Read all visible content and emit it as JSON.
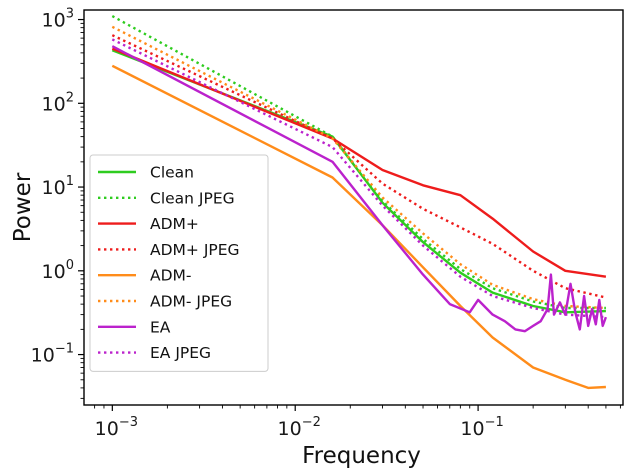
{
  "chart_data": {
    "type": "line",
    "title": "",
    "xlabel": "Frequency",
    "ylabel": "Power",
    "xscale": "log",
    "yscale": "log",
    "xlim": [
      0.0007,
      0.62
    ],
    "ylim": [
      0.025,
      1300
    ],
    "xticks": [
      {
        "value": 0.001,
        "base": "10",
        "exp": "−3"
      },
      {
        "value": 0.01,
        "base": "10",
        "exp": "−2"
      },
      {
        "value": 0.1,
        "base": "10",
        "exp": "−1"
      }
    ],
    "yticks": [
      {
        "value": 0.1,
        "base": "10",
        "exp": "−1"
      },
      {
        "value": 1,
        "base": "10",
        "exp": "0"
      },
      {
        "value": 10,
        "base": "10",
        "exp": "1"
      },
      {
        "value": 100,
        "base": "10",
        "exp": "2"
      },
      {
        "value": 1000,
        "base": "10",
        "exp": "3"
      }
    ],
    "grid": false,
    "legend_position": "lower-left",
    "series": [
      {
        "name": "Clean",
        "color": "#2ecc1f",
        "style": "solid",
        "x": [
          0.001,
          0.016,
          0.03,
          0.05,
          0.08,
          0.12,
          0.2,
          0.3,
          0.5
        ],
        "y": [
          430,
          40,
          6.5,
          2.2,
          0.95,
          0.55,
          0.38,
          0.32,
          0.33
        ]
      },
      {
        "name": "Clean JPEG",
        "color": "#2ecc1f",
        "style": "dotted",
        "x": [
          0.001,
          0.016,
          0.03,
          0.05,
          0.08,
          0.12,
          0.2,
          0.3,
          0.5
        ],
        "y": [
          1100,
          40,
          6.8,
          2.4,
          1.05,
          0.62,
          0.43,
          0.36,
          0.36
        ]
      },
      {
        "name": "ADM+",
        "color": "#ee1c1c",
        "style": "solid",
        "x": [
          0.001,
          0.016,
          0.03,
          0.05,
          0.08,
          0.12,
          0.2,
          0.3,
          0.5
        ],
        "y": [
          450,
          38,
          16,
          10.5,
          8,
          4.2,
          1.7,
          1.0,
          0.85
        ]
      },
      {
        "name": "ADM+ JPEG",
        "color": "#ee1c1c",
        "style": "dotted",
        "x": [
          0.001,
          0.016,
          0.03,
          0.05,
          0.08,
          0.12,
          0.2,
          0.3,
          0.5
        ],
        "y": [
          650,
          38,
          11,
          5.5,
          3.3,
          2.1,
          1.0,
          0.62,
          0.48
        ]
      },
      {
        "name": "ADM-",
        "color": "#ff8c1a",
        "style": "solid",
        "x": [
          0.001,
          0.016,
          0.03,
          0.05,
          0.08,
          0.12,
          0.2,
          0.3,
          0.4,
          0.5
        ],
        "y": [
          280,
          13,
          3.5,
          1.1,
          0.38,
          0.16,
          0.07,
          0.05,
          0.04,
          0.041
        ]
      },
      {
        "name": "ADM- JPEG",
        "color": "#ff8c1a",
        "style": "dotted",
        "x": [
          0.001,
          0.016,
          0.03,
          0.05,
          0.08,
          0.12,
          0.2,
          0.3,
          0.5
        ],
        "y": [
          820,
          38,
          7.5,
          2.8,
          1.2,
          0.68,
          0.46,
          0.38,
          0.36
        ]
      },
      {
        "name": "EA",
        "color": "#bb22cc",
        "style": "solid",
        "x": [
          0.001,
          0.016,
          0.03,
          0.05,
          0.07,
          0.09,
          0.1,
          0.12,
          0.14,
          0.16,
          0.18,
          0.2,
          0.22,
          0.24,
          0.25,
          0.26,
          0.28,
          0.3,
          0.32,
          0.34,
          0.36,
          0.38,
          0.4,
          0.42,
          0.44,
          0.46,
          0.48,
          0.5
        ],
        "y": [
          480,
          20,
          3.5,
          0.9,
          0.4,
          0.32,
          0.45,
          0.3,
          0.25,
          0.2,
          0.19,
          0.22,
          0.25,
          0.35,
          0.9,
          0.3,
          0.42,
          0.3,
          0.7,
          0.32,
          0.2,
          0.5,
          0.22,
          0.35,
          0.23,
          0.45,
          0.22,
          0.28
        ]
      },
      {
        "name": "EA JPEG",
        "color": "#bb22cc",
        "style": "dotted",
        "x": [
          0.001,
          0.016,
          0.03,
          0.05,
          0.08,
          0.12,
          0.2,
          0.3,
          0.5
        ],
        "y": [
          580,
          30,
          6.0,
          2.0,
          0.85,
          0.5,
          0.36,
          0.3,
          0.28
        ]
      }
    ]
  }
}
